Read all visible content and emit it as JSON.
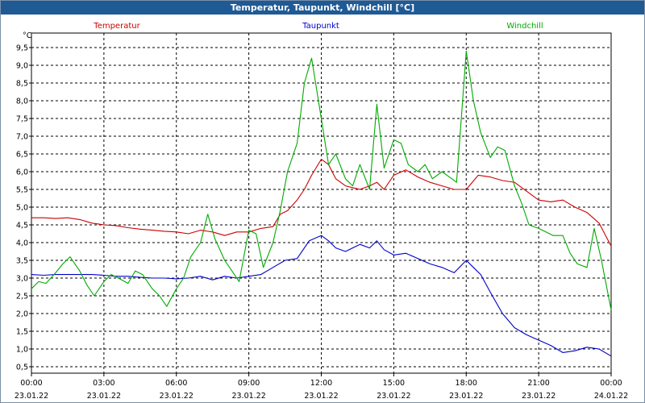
{
  "window_title": "Temperatur, Taupunkt, Windchill [°C]",
  "chart_data": {
    "type": "line",
    "title": "Temperatur, Taupunkt, Windchill [°C]",
    "ylabel": "°C",
    "ylim": [
      0.5,
      9.5
    ],
    "yticks": [
      "0,5",
      "1,0",
      "1,5",
      "2,0",
      "2,5",
      "3,0",
      "3,5",
      "4,0",
      "4,5",
      "5,0",
      "5,5",
      "6,0",
      "6,5",
      "7,0",
      "7,5",
      "8,0",
      "8,5",
      "9,0",
      "9,5"
    ],
    "xlim": [
      0,
      24
    ],
    "xticks": [
      {
        "time": "00:00",
        "date": "23.01.22"
      },
      {
        "time": "03:00",
        "date": "23.01.22"
      },
      {
        "time": "06:00",
        "date": "23.01.22"
      },
      {
        "time": "09:00",
        "date": "23.01.22"
      },
      {
        "time": "12:00",
        "date": "23.01.22"
      },
      {
        "time": "15:00",
        "date": "23.01.22"
      },
      {
        "time": "18:00",
        "date": "23.01.22"
      },
      {
        "time": "21:00",
        "date": "23.01.22"
      },
      {
        "time": "00:00",
        "date": "24.01.22"
      }
    ],
    "grid": true,
    "legend_position": "top",
    "series": [
      {
        "name": "Temperatur",
        "color": "#cc0000",
        "x": [
          0,
          0.5,
          1,
          1.5,
          2,
          2.5,
          3,
          3.5,
          4,
          4.5,
          5,
          5.5,
          6,
          6.5,
          7,
          7.5,
          8,
          8.5,
          9,
          9.5,
          10,
          10.3,
          10.6,
          11,
          11.3,
          11.6,
          12,
          12.3,
          12.6,
          13,
          13.3,
          13.6,
          14,
          14.3,
          14.6,
          15,
          15.5,
          16,
          16.5,
          17,
          17.5,
          18,
          18.5,
          19,
          19.5,
          20,
          20.5,
          21,
          21.5,
          22,
          22.5,
          23,
          23.5,
          24
        ],
        "y": [
          4.7,
          4.7,
          4.68,
          4.7,
          4.65,
          4.55,
          4.5,
          4.48,
          4.42,
          4.38,
          4.35,
          4.32,
          4.3,
          4.25,
          4.35,
          4.3,
          4.2,
          4.3,
          4.3,
          4.4,
          4.45,
          4.8,
          4.9,
          5.2,
          5.5,
          5.9,
          6.35,
          6.2,
          5.8,
          5.6,
          5.55,
          5.5,
          5.6,
          5.7,
          5.5,
          5.9,
          6.05,
          5.85,
          5.7,
          5.6,
          5.5,
          5.5,
          5.9,
          5.85,
          5.75,
          5.7,
          5.45,
          5.2,
          5.15,
          5.2,
          5.0,
          4.85,
          4.55,
          3.9
        ]
      },
      {
        "name": "Taupunkt",
        "color": "#0000cc",
        "x": [
          0,
          0.5,
          1,
          1.5,
          2,
          2.5,
          3,
          3.5,
          4,
          4.5,
          5,
          5.5,
          6,
          6.5,
          7,
          7.5,
          8,
          8.5,
          9,
          9.5,
          10,
          10.5,
          11,
          11.5,
          12,
          12.3,
          12.6,
          13,
          13.3,
          13.6,
          14,
          14.3,
          14.6,
          15,
          15.5,
          16,
          16.5,
          17,
          17.5,
          18,
          18.3,
          18.6,
          19,
          19.5,
          20,
          20.5,
          21,
          21.5,
          22,
          22.5,
          23,
          23.5,
          24
        ],
        "y": [
          3.1,
          3.08,
          3.1,
          3.1,
          3.1,
          3.1,
          3.08,
          3.05,
          3.05,
          3.02,
          3.0,
          3.0,
          2.98,
          3.0,
          3.05,
          2.95,
          3.05,
          3.0,
          3.05,
          3.1,
          3.3,
          3.5,
          3.55,
          4.05,
          4.2,
          4.05,
          3.85,
          3.75,
          3.85,
          3.95,
          3.85,
          4.05,
          3.8,
          3.65,
          3.7,
          3.55,
          3.4,
          3.3,
          3.15,
          3.5,
          3.3,
          3.1,
          2.6,
          2.0,
          1.6,
          1.4,
          1.25,
          1.1,
          0.9,
          0.95,
          1.05,
          1.0,
          0.8
        ]
      },
      {
        "name": "Windchill",
        "color": "#00aa00",
        "x": [
          0,
          0.3,
          0.6,
          1,
          1.3,
          1.6,
          2,
          2.3,
          2.6,
          3,
          3.3,
          3.6,
          4,
          4.3,
          4.6,
          5,
          5.3,
          5.6,
          6,
          6.3,
          6.6,
          7,
          7.3,
          7.6,
          8,
          8.3,
          8.6,
          9,
          9.3,
          9.6,
          10,
          10.3,
          10.6,
          11,
          11.3,
          11.6,
          12,
          12.3,
          12.6,
          13,
          13.3,
          13.6,
          14,
          14.3,
          14.6,
          15,
          15.3,
          15.6,
          16,
          16.3,
          16.6,
          17,
          17.3,
          17.6,
          18,
          18.3,
          18.6,
          19,
          19.3,
          19.6,
          20,
          20.3,
          20.6,
          21,
          21.3,
          21.6,
          22,
          22.3,
          22.6,
          23,
          23.3,
          23.6,
          24
        ],
        "y": [
          2.7,
          2.9,
          2.85,
          3.15,
          3.4,
          3.6,
          3.2,
          2.8,
          2.5,
          2.9,
          3.1,
          3.0,
          2.85,
          3.2,
          3.1,
          2.7,
          2.5,
          2.2,
          2.7,
          3.0,
          3.6,
          4.0,
          4.8,
          4.1,
          3.5,
          3.2,
          2.9,
          4.35,
          4.25,
          3.3,
          4.0,
          4.9,
          6.0,
          6.8,
          8.5,
          9.2,
          7.5,
          6.2,
          6.5,
          5.8,
          5.6,
          6.2,
          5.5,
          7.9,
          6.1,
          6.9,
          6.8,
          6.2,
          6.0,
          6.2,
          5.8,
          6.0,
          5.85,
          5.7,
          9.4,
          8.0,
          7.1,
          6.4,
          6.7,
          6.6,
          5.6,
          5.1,
          4.5,
          4.4,
          4.3,
          4.2,
          4.2,
          3.7,
          3.4,
          3.3,
          4.4,
          3.5,
          2.1
        ]
      }
    ]
  }
}
